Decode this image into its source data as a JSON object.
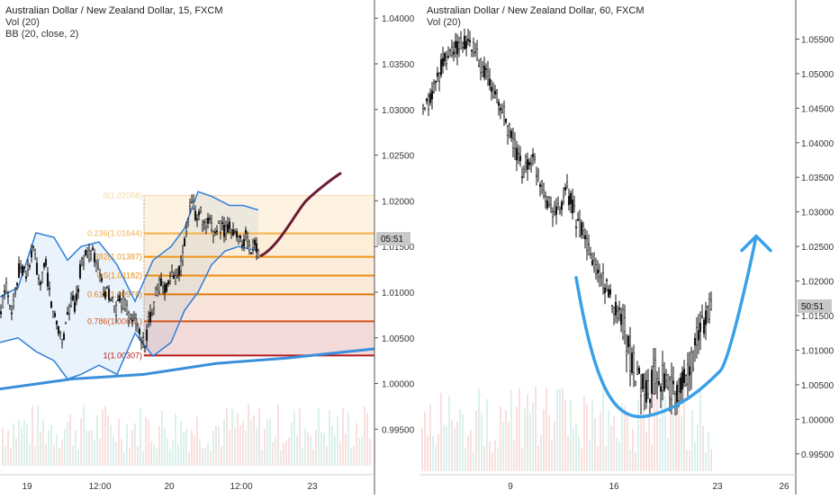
{
  "charts": {
    "left": {
      "title": "Australian Dollar / New Zealand Dollar, 15, FXCM",
      "indicators": [
        "Vol (20)",
        "BB (20, close, 2)"
      ],
      "y_ticks": [
        "1.04000",
        "1.03500",
        "1.03000",
        "1.02500",
        "1.02000",
        "1.01500",
        "1.01000",
        "1.00500",
        "1.00000",
        "0.99500"
      ],
      "x_ticks": [
        "19",
        "12:00",
        "20",
        "12:00",
        "23"
      ],
      "countdown": "05:51"
    },
    "right": {
      "title": "Australian Dollar / New Zealand Dollar, 60, FXCM",
      "indicators": [
        "Vol (20)"
      ],
      "y_ticks": [
        "1.05500",
        "1.05000",
        "1.04500",
        "1.04000",
        "1.03500",
        "1.03000",
        "1.02500",
        "1.02000",
        "1.01500",
        "1.01000",
        "1.00500",
        "1.00000",
        "0.99500"
      ],
      "x_ticks": [
        "9",
        "16",
        "23",
        "26"
      ],
      "countdown": "50:51"
    }
  },
  "chart_data": [
    {
      "type": "candlestick",
      "title": "Australian Dollar / New Zealand Dollar, 15, FXCM",
      "ylim": [
        0.991,
        1.0415
      ],
      "y_ticks": [
        1.04,
        1.035,
        1.03,
        1.025,
        1.02,
        1.015,
        1.01,
        1.005,
        1.0,
        0.995
      ],
      "x_ticks": [
        "19",
        "12:00",
        "20",
        "12:00",
        "23"
      ],
      "price_path": [
        [
          0,
          1.0068
        ],
        [
          6,
          1.011
        ],
        [
          14,
          1.008
        ],
        [
          22,
          1.013
        ],
        [
          30,
          1.012
        ],
        [
          38,
          1.015
        ],
        [
          44,
          1.01
        ],
        [
          50,
          1.0135
        ],
        [
          58,
          1.008
        ],
        [
          64,
          1.0065
        ],
        [
          70,
          1.0045
        ],
        [
          74,
          1.0075
        ],
        [
          80,
          1.009
        ],
        [
          84,
          1.0085
        ],
        [
          90,
          1.013
        ],
        [
          96,
          1.0145
        ],
        [
          104,
          1.014
        ],
        [
          110,
          1.012
        ],
        [
          116,
          1.0095
        ],
        [
          122,
          1.01
        ],
        [
          128,
          1.008
        ],
        [
          134,
          1.009
        ],
        [
          140,
          1.0085
        ],
        [
          146,
          1.0065
        ],
        [
          150,
          1.0075
        ],
        [
          154,
          1.0055
        ],
        [
          160,
          1.004
        ],
        [
          166,
          1.007
        ],
        [
          172,
          1.0095
        ],
        [
          178,
          1.011
        ],
        [
          184,
          1.0105
        ],
        [
          190,
          1.0115
        ],
        [
          196,
          1.012
        ],
        [
          202,
          1.013
        ],
        [
          206,
          1.016
        ],
        [
          210,
          1.0185
        ],
        [
          214,
          1.02
        ],
        [
          218,
          1.018
        ],
        [
          222,
          1.019
        ],
        [
          226,
          1.017
        ],
        [
          232,
          1.0175
        ],
        [
          238,
          1.0165
        ],
        [
          244,
          1.0175
        ],
        [
          250,
          1.0165
        ],
        [
          256,
          1.0175
        ],
        [
          262,
          1.016
        ],
        [
          266,
          1.0165
        ],
        [
          270,
          1.015
        ],
        [
          274,
          1.0165
        ],
        [
          278,
          1.014
        ],
        [
          282,
          1.0155
        ],
        [
          286,
          1.0145
        ]
      ],
      "fibonacci": {
        "levels": [
          {
            "ratio": 0,
            "label": "0(1.02058)",
            "price": 1.02058,
            "color": "#f6d6a8"
          },
          {
            "ratio": 0.236,
            "label": "0.236(1.01644)",
            "price": 1.01644,
            "color": "#f8b048"
          },
          {
            "ratio": 0.382,
            "label": "0.382(1.01387)",
            "price": 1.01387,
            "color": "#f0941a"
          },
          {
            "ratio": 0.5,
            "label": "0.5(1.01182)",
            "price": 1.01182,
            "color": "#ec8a12"
          },
          {
            "ratio": 0.618,
            "label": "0.618(1.00976)",
            "price": 1.00976,
            "color": "#e07a0c"
          },
          {
            "ratio": 0.786,
            "label": "0.786(1.00681)",
            "price": 1.00681,
            "color": "#d2541a"
          },
          {
            "ratio": 1,
            "label": "1(1.00307)",
            "price": 1.00307,
            "color": "#b71c1c"
          }
        ]
      },
      "moving_average": [
        [
          0,
          0.9994
        ],
        [
          80,
          1.0005
        ],
        [
          160,
          1.001
        ],
        [
          240,
          1.0022
        ],
        [
          320,
          1.0028
        ],
        [
          416,
          1.0038
        ]
      ],
      "projection": [
        [
          290,
          1.014
        ],
        [
          310,
          1.015
        ],
        [
          340,
          1.02
        ],
        [
          378,
          1.023
        ]
      ],
      "bollinger_upper": [
        [
          0,
          1.0095
        ],
        [
          20,
          1.0105
        ],
        [
          40,
          1.0165
        ],
        [
          60,
          1.016
        ],
        [
          75,
          1.0135
        ],
        [
          90,
          1.015
        ],
        [
          110,
          1.0155
        ],
        [
          130,
          1.013
        ],
        [
          150,
          1.009
        ],
        [
          170,
          1.0135
        ],
        [
          190,
          1.015
        ],
        [
          205,
          1.017
        ],
        [
          220,
          1.021
        ],
        [
          235,
          1.0205
        ],
        [
          255,
          1.0195
        ],
        [
          270,
          1.0195
        ],
        [
          287,
          1.019
        ]
      ],
      "bollinger_lower": [
        [
          0,
          1.0045
        ],
        [
          20,
          1.005
        ],
        [
          40,
          1.0035
        ],
        [
          60,
          1.0025
        ],
        [
          75,
          1.0005
        ],
        [
          90,
          1.001
        ],
        [
          110,
          1.002
        ],
        [
          130,
          1.001
        ],
        [
          150,
          1.0055
        ],
        [
          170,
          1.003
        ],
        [
          190,
          1.0045
        ],
        [
          205,
          1.008
        ],
        [
          220,
          1.01
        ],
        [
          235,
          1.013
        ],
        [
          250,
          1.0145
        ],
        [
          265,
          1.015
        ],
        [
          287,
          1.0145
        ]
      ]
    },
    {
      "type": "candlestick",
      "title": "Australian Dollar / New Zealand Dollar, 60, FXCM",
      "ylim": [
        0.9925,
        1.06
      ],
      "y_ticks": [
        1.055,
        1.05,
        1.045,
        1.04,
        1.035,
        1.03,
        1.025,
        1.02,
        1.015,
        1.01,
        1.005,
        1.0,
        0.995
      ],
      "x_ticks": [
        "9",
        "16",
        "23",
        "26"
      ],
      "price_path": [
        [
          470,
          1.044
        ],
        [
          480,
          1.047
        ],
        [
          490,
          1.051
        ],
        [
          500,
          1.053
        ],
        [
          510,
          1.054
        ],
        [
          520,
          1.0545
        ],
        [
          530,
          1.0525
        ],
        [
          540,
          1.05
        ],
        [
          550,
          1.047
        ],
        [
          560,
          1.044
        ],
        [
          570,
          1.04
        ],
        [
          580,
          1.036
        ],
        [
          590,
          1.038
        ],
        [
          600,
          1.035
        ],
        [
          610,
          1.031
        ],
        [
          620,
          1.03
        ],
        [
          630,
          1.033
        ],
        [
          640,
          1.029
        ],
        [
          650,
          1.026
        ],
        [
          660,
          1.022
        ],
        [
          670,
          1.02
        ],
        [
          680,
          1.017
        ],
        [
          690,
          1.015
        ],
        [
          700,
          1.009
        ],
        [
          710,
          1.006
        ],
        [
          720,
          1.004
        ],
        [
          730,
          1.007
        ],
        [
          740,
          1.005
        ],
        [
          750,
          1.003
        ],
        [
          760,
          1.006
        ],
        [
          770,
          1.009
        ],
        [
          780,
          1.014
        ],
        [
          790,
          1.017
        ]
      ],
      "projection_arc": [
        [
          640,
          1.0205
        ],
        [
          660,
          1.008
        ],
        [
          690,
          1.002
        ],
        [
          720,
          1.0005
        ],
        [
          760,
          1.001
        ],
        [
          800,
          1.007
        ],
        [
          830,
          1.02
        ],
        [
          840,
          1.0265
        ]
      ]
    }
  ],
  "colors": {
    "axis_text": "#333333",
    "bb_line": "#2f7ed8",
    "bb_fill": "#e8f2fb",
    "ma_line": "#3a8fdb",
    "projection": "#6b1d33",
    "arc": "#3aa0e8",
    "countdown_bg": "#c8c8c8"
  }
}
